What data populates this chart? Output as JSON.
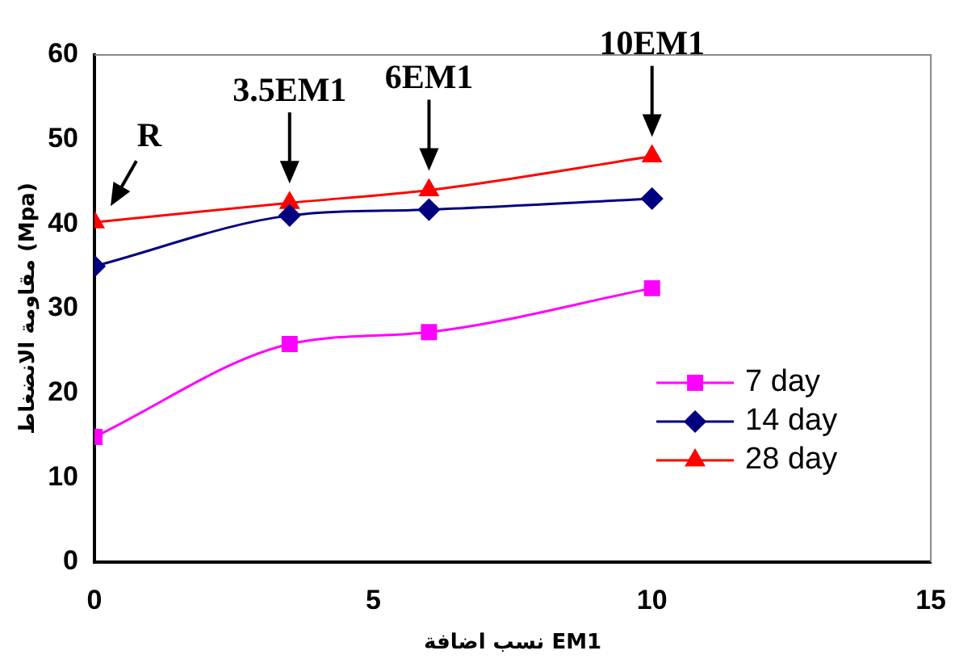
{
  "chart_data": {
    "type": "line",
    "xlabel": "نسب اضافة EM1",
    "ylabel": "مقاومة الانضغاط (Mpa)",
    "x": [
      0,
      3.5,
      6,
      10
    ],
    "series": [
      {
        "name": "7 day",
        "color": "#ff00ff",
        "marker": "square",
        "values": [
          14.8,
          25.8,
          27.2,
          32.4
        ]
      },
      {
        "name": "14 day",
        "color": "#000080",
        "marker": "diamond",
        "values": [
          35,
          41,
          41.7,
          43
        ]
      },
      {
        "name": "28 day",
        "color": "#ff0000",
        "marker": "triangle",
        "values": [
          40.2,
          42.5,
          44,
          48
        ]
      }
    ],
    "xlim": [
      0,
      15
    ],
    "xticks": [
      0,
      5,
      10,
      15
    ],
    "ylim": [
      0,
      60
    ],
    "yticks": [
      0,
      10,
      20,
      30,
      40,
      50,
      60
    ],
    "grid": false,
    "legend": "right",
    "annotations": [
      {
        "text": "R",
        "x": 0,
        "y": 40.2
      },
      {
        "text": "3.5EM1",
        "x": 3.5,
        "y": 42.5
      },
      {
        "text": "6EM1",
        "x": 6,
        "y": 44
      },
      {
        "text": "10EM1",
        "x": 10,
        "y": 48
      }
    ]
  }
}
